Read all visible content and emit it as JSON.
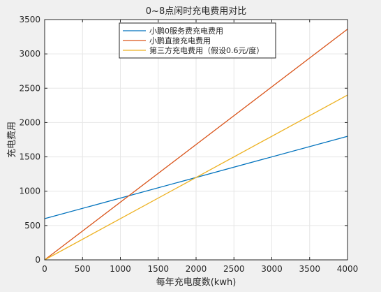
{
  "chart_data": {
    "type": "line",
    "title": "0~8点闲时充电费用对比",
    "xlabel": "每年充电度数(kwh)",
    "ylabel": "充电费用",
    "xlim": [
      0,
      4000
    ],
    "ylim": [
      0,
      3500
    ],
    "xticks": [
      0,
      500,
      1000,
      1500,
      2000,
      2500,
      3000,
      3500,
      4000
    ],
    "yticks": [
      0,
      500,
      1000,
      1500,
      2000,
      2500,
      3000,
      3500
    ],
    "grid": true,
    "legend_position": "top-center",
    "series": [
      {
        "name": "小鹏0服务费充电费用",
        "color": "#0072BD",
        "x": [
          0,
          4000
        ],
        "y": [
          600,
          1800
        ]
      },
      {
        "name": "小鹏直接充电费用",
        "color": "#D95319",
        "x": [
          0,
          4000
        ],
        "y": [
          0,
          3360
        ]
      },
      {
        "name": "第三方充电费用（假设0.6元/度）",
        "color": "#EDB120",
        "x": [
          0,
          4000
        ],
        "y": [
          0,
          2400
        ]
      }
    ]
  }
}
